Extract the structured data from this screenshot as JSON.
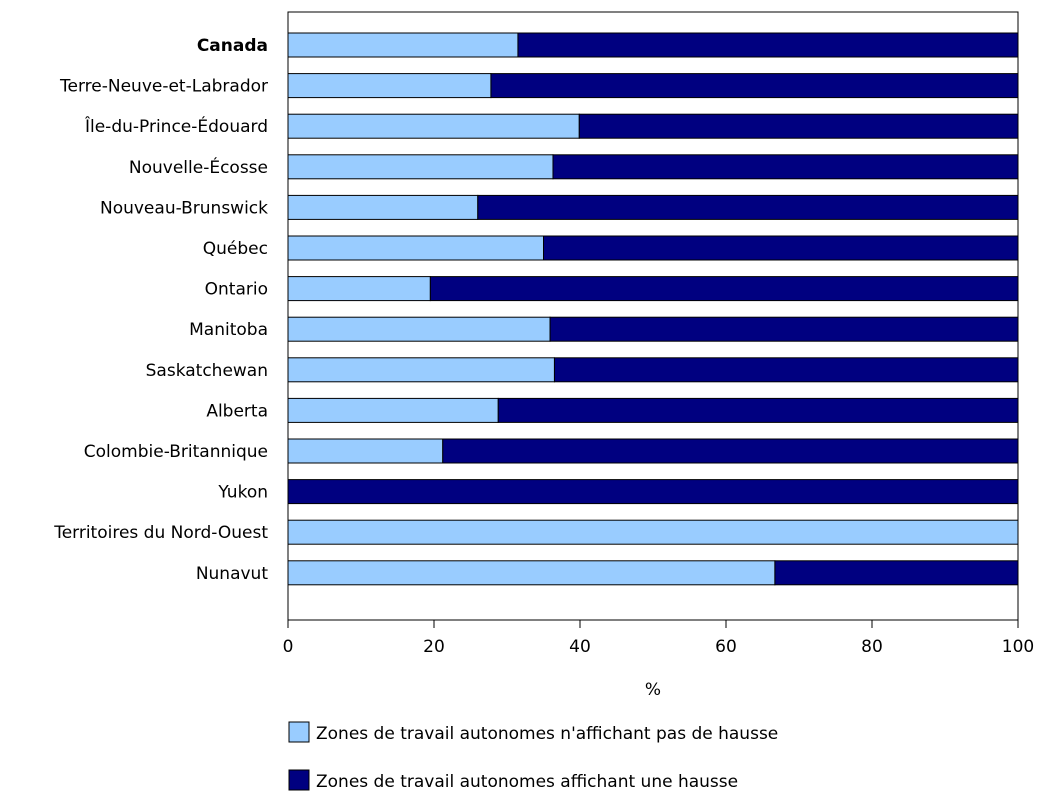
{
  "chart_data": {
    "type": "bar",
    "orientation": "horizontal",
    "stacked": true,
    "categories": [
      "Canada",
      "Terre-Neuve-et-Labrador",
      "Île-du-Prince-Édouard",
      "Nouvelle-Écosse",
      "Nouveau-Brunswick",
      "Québec",
      "Ontario",
      "Manitoba",
      "Saskatchewan",
      "Alberta",
      "Colombie-Britannique",
      "Yukon",
      "Territoires du Nord-Ouest",
      "Nunavut"
    ],
    "bold_categories": [
      "Canada"
    ],
    "series": [
      {
        "name": "Zones de travail autonomes n'affichant pas de hausse",
        "color": "#99ccff",
        "values": [
          31.5,
          27.8,
          39.9,
          36.3,
          26.0,
          35.0,
          19.5,
          35.9,
          36.5,
          28.8,
          21.2,
          0,
          100,
          66.7
        ]
      },
      {
        "name": "Zones de travail autonomes affichant une hausse",
        "color": "#000080",
        "values": [
          68.5,
          72.2,
          60.1,
          63.7,
          74.0,
          65.0,
          80.5,
          64.1,
          63.5,
          71.2,
          78.8,
          100,
          0,
          33.3
        ]
      }
    ],
    "xlabel": "%",
    "xlim": [
      0,
      100
    ],
    "xticks": [
      0,
      20,
      40,
      60,
      80,
      100
    ],
    "legend_position": "bottom",
    "grid": false
  }
}
